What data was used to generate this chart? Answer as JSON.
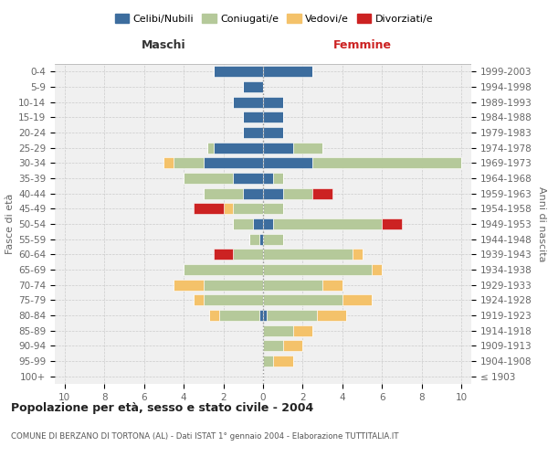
{
  "age_groups": [
    "100+",
    "95-99",
    "90-94",
    "85-89",
    "80-84",
    "75-79",
    "70-74",
    "65-69",
    "60-64",
    "55-59",
    "50-54",
    "45-49",
    "40-44",
    "35-39",
    "30-34",
    "25-29",
    "20-24",
    "15-19",
    "10-14",
    "5-9",
    "0-4"
  ],
  "birth_years": [
    "≤ 1903",
    "1904-1908",
    "1909-1913",
    "1914-1918",
    "1919-1923",
    "1924-1928",
    "1929-1933",
    "1934-1938",
    "1939-1943",
    "1944-1948",
    "1949-1953",
    "1954-1958",
    "1959-1963",
    "1964-1968",
    "1969-1973",
    "1974-1978",
    "1979-1983",
    "1984-1988",
    "1989-1993",
    "1994-1998",
    "1999-2003"
  ],
  "male_celibi": [
    0,
    0,
    0,
    0,
    0.2,
    0,
    0,
    0,
    0,
    0.2,
    0.5,
    0,
    1.0,
    1.5,
    3.0,
    2.5,
    1.0,
    1.0,
    1.5,
    1.0,
    2.5
  ],
  "male_coniugati": [
    0,
    0,
    0,
    0,
    2.0,
    3.0,
    3.0,
    4.0,
    1.5,
    0.5,
    1.0,
    1.5,
    2.0,
    2.5,
    1.5,
    0.3,
    0,
    0,
    0,
    0,
    0
  ],
  "male_vedovi": [
    0,
    0,
    0,
    0,
    0.5,
    0.5,
    1.5,
    0,
    0,
    0,
    0,
    0.5,
    0,
    0,
    0.5,
    0,
    0,
    0,
    0,
    0,
    0
  ],
  "male_divorziati": [
    0,
    0,
    0,
    0,
    0,
    0,
    0,
    0,
    1.0,
    0,
    0,
    1.5,
    0,
    0,
    0,
    0,
    0,
    0,
    0,
    0,
    0
  ],
  "female_celibi": [
    0,
    0,
    0,
    0,
    0.2,
    0,
    0,
    0,
    0,
    0,
    0.5,
    0,
    1.0,
    0.5,
    2.5,
    1.5,
    1.0,
    1.0,
    1.0,
    0,
    2.5
  ],
  "female_coniugati": [
    0,
    0.5,
    1.0,
    1.5,
    2.5,
    4.0,
    3.0,
    5.5,
    4.5,
    1.0,
    5.5,
    1.0,
    1.5,
    0.5,
    7.5,
    1.5,
    0,
    0,
    0,
    0,
    0
  ],
  "female_vedovi": [
    0,
    1.0,
    1.0,
    1.0,
    1.5,
    1.5,
    1.0,
    0.5,
    0.5,
    0,
    0,
    0,
    0,
    0,
    0,
    0,
    0,
    0,
    0,
    0,
    0
  ],
  "female_divorziati": [
    0,
    0,
    0,
    0,
    0,
    0,
    0,
    0,
    0,
    0,
    1.0,
    0,
    1.0,
    0,
    0,
    0,
    0,
    0,
    0,
    0,
    0
  ],
  "color_celibi": "#3d6d9e",
  "color_coniugati": "#b5c99a",
  "color_vedovi": "#f4c26a",
  "color_divorziati": "#cc2222",
  "title": "Popolazione per età, sesso e stato civile - 2004",
  "subtitle": "COMUNE DI BERZANO DI TORTONA (AL) - Dati ISTAT 1° gennaio 2004 - Elaborazione TUTTITALIA.IT",
  "label_maschi": "Maschi",
  "label_femmine": "Femmine",
  "ylabel_left": "Fasce di età",
  "ylabel_right": "Anni di nascita",
  "legend_celibi": "Celibi/Nubili",
  "legend_coniugati": "Coniugati/e",
  "legend_vedovi": "Vedovi/e",
  "legend_divorziati": "Divorziati/e",
  "bg_color": "#ffffff",
  "plot_bg": "#f0f0f0",
  "grid_color": "#cccccc"
}
